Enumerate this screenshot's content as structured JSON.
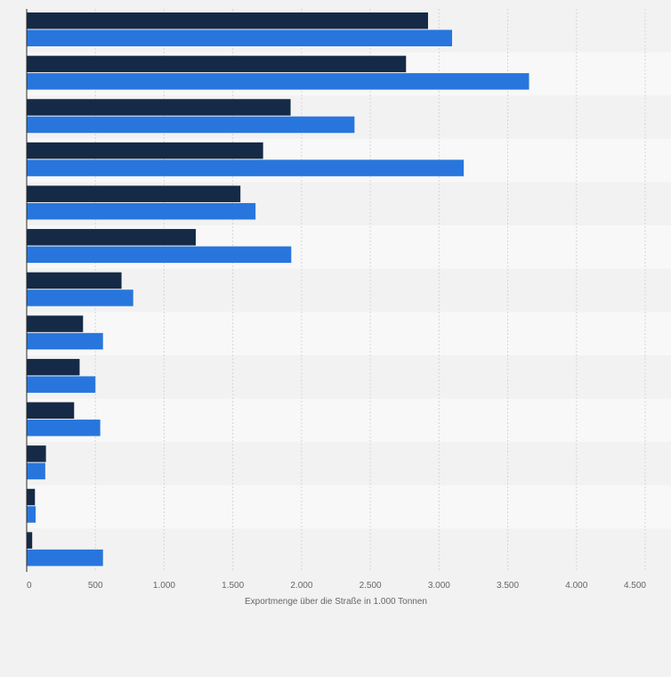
{
  "chart_data": {
    "type": "bar",
    "orientation": "horizontal",
    "title": "",
    "xlabel": "Exportmenge über die Straße in 1.000 Tonnen",
    "ylabel": "",
    "xlim": [
      0,
      4500
    ],
    "x_ticks": [
      0,
      500,
      1000,
      1500,
      2000,
      2500,
      3000,
      3500,
      4000,
      4500
    ],
    "x_tick_labels": [
      "0",
      "500",
      "1.000",
      "1.500",
      "2.000",
      "2.500",
      "3.000",
      "3.500",
      "4.000",
      "4.500"
    ],
    "grid": true,
    "legend": "none",
    "categories": [
      "",
      "",
      "",
      "",
      "",
      "",
      "",
      "",
      "",
      "",
      "",
      "",
      ""
    ],
    "series": [
      {
        "name": "",
        "color": "#152a46",
        "values": [
          2920,
          2760,
          1920,
          1720,
          1555,
          1230,
          690,
          410,
          385,
          345,
          140,
          60,
          40
        ]
      },
      {
        "name": "",
        "color": "#2876dd",
        "values": [
          3095,
          3655,
          2385,
          3180,
          1665,
          1925,
          775,
          555,
          500,
          535,
          135,
          65,
          555
        ]
      }
    ]
  }
}
